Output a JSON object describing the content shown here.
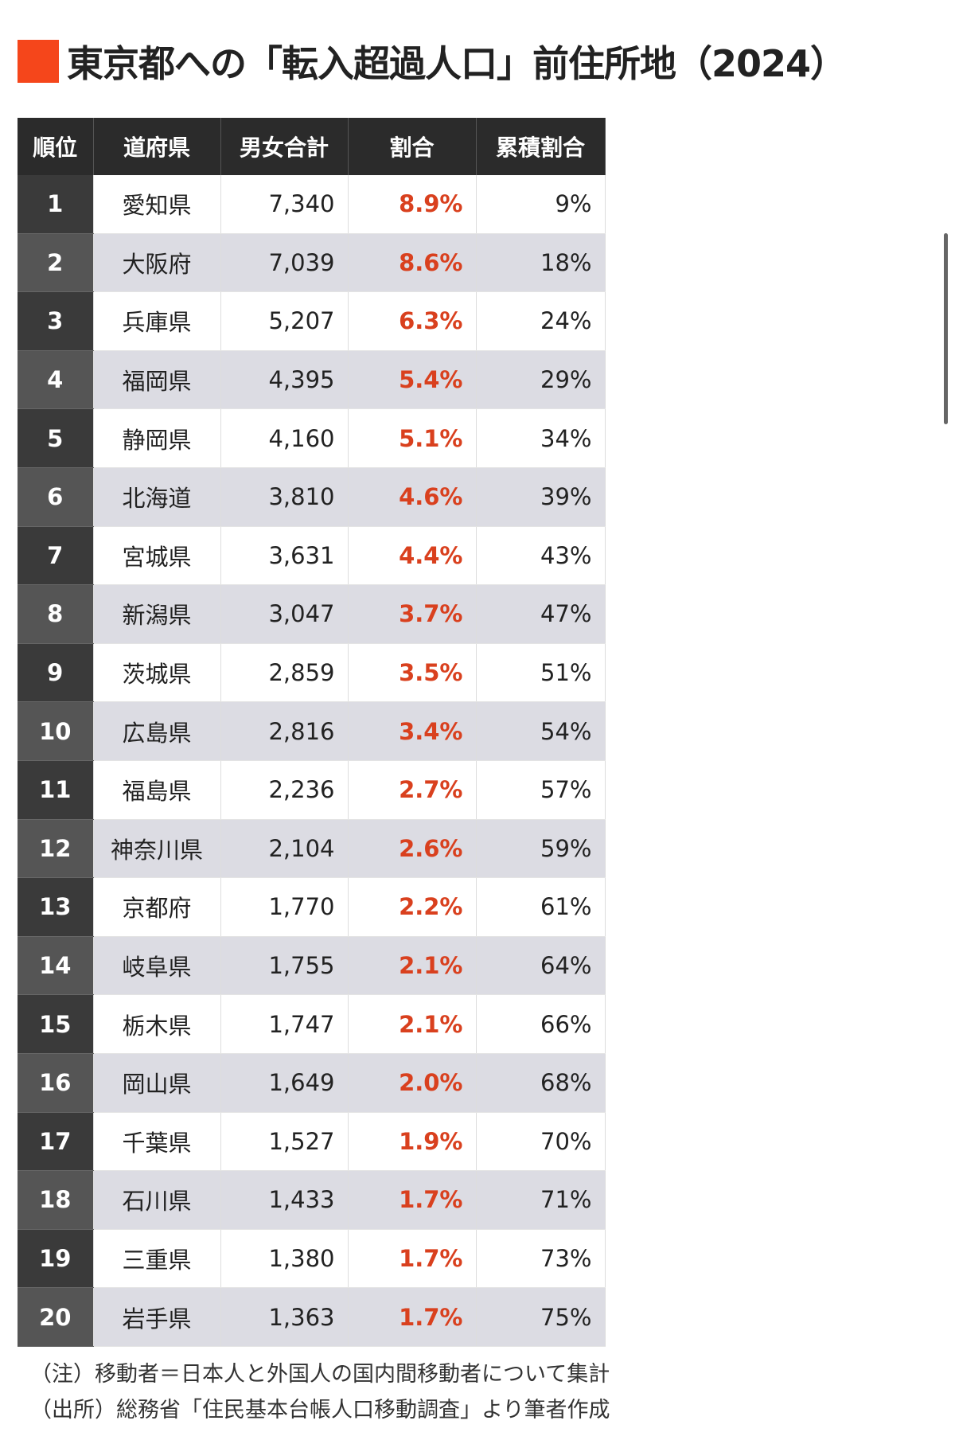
{
  "title": "東京都への「転入超過人口」前住所地（2024）",
  "colors": {
    "accent": "#f5461b",
    "header_bg": "#2b2b2b",
    "pct_text": "#d9401e"
  },
  "table": {
    "headers": [
      "順位",
      "道府県",
      "男女合計",
      "割合",
      "累積割合"
    ],
    "rows": [
      [
        "1",
        "愛知県",
        "7,340",
        "8.9%",
        "9%"
      ],
      [
        "2",
        "大阪府",
        "7,039",
        "8.6%",
        "18%"
      ],
      [
        "3",
        "兵庫県",
        "5,207",
        "6.3%",
        "24%"
      ],
      [
        "4",
        "福岡県",
        "4,395",
        "5.4%",
        "29%"
      ],
      [
        "5",
        "静岡県",
        "4,160",
        "5.1%",
        "34%"
      ],
      [
        "6",
        "北海道",
        "3,810",
        "4.6%",
        "39%"
      ],
      [
        "7",
        "宮城県",
        "3,631",
        "4.4%",
        "43%"
      ],
      [
        "8",
        "新潟県",
        "3,047",
        "3.7%",
        "47%"
      ],
      [
        "9",
        "茨城県",
        "2,859",
        "3.5%",
        "51%"
      ],
      [
        "10",
        "広島県",
        "2,816",
        "3.4%",
        "54%"
      ],
      [
        "11",
        "福島県",
        "2,236",
        "2.7%",
        "57%"
      ],
      [
        "12",
        "神奈川県",
        "2,104",
        "2.6%",
        "59%"
      ],
      [
        "13",
        "京都府",
        "1,770",
        "2.2%",
        "61%"
      ],
      [
        "14",
        "岐阜県",
        "1,755",
        "2.1%",
        "64%"
      ],
      [
        "15",
        "栃木県",
        "1,747",
        "2.1%",
        "66%"
      ],
      [
        "16",
        "岡山県",
        "1,649",
        "2.0%",
        "68%"
      ],
      [
        "17",
        "千葉県",
        "1,527",
        "1.9%",
        "70%"
      ],
      [
        "18",
        "石川県",
        "1,433",
        "1.7%",
        "71%"
      ],
      [
        "19",
        "三重県",
        "1,380",
        "1.7%",
        "73%"
      ],
      [
        "20",
        "岩手県",
        "1,363",
        "1.7%",
        "75%"
      ]
    ]
  },
  "notes": [
    "（注）移動者＝日本人と外国人の国内間移動者について集計",
    "（出所）総務省「住民基本台帳人口移動調査」より筆者作成"
  ]
}
